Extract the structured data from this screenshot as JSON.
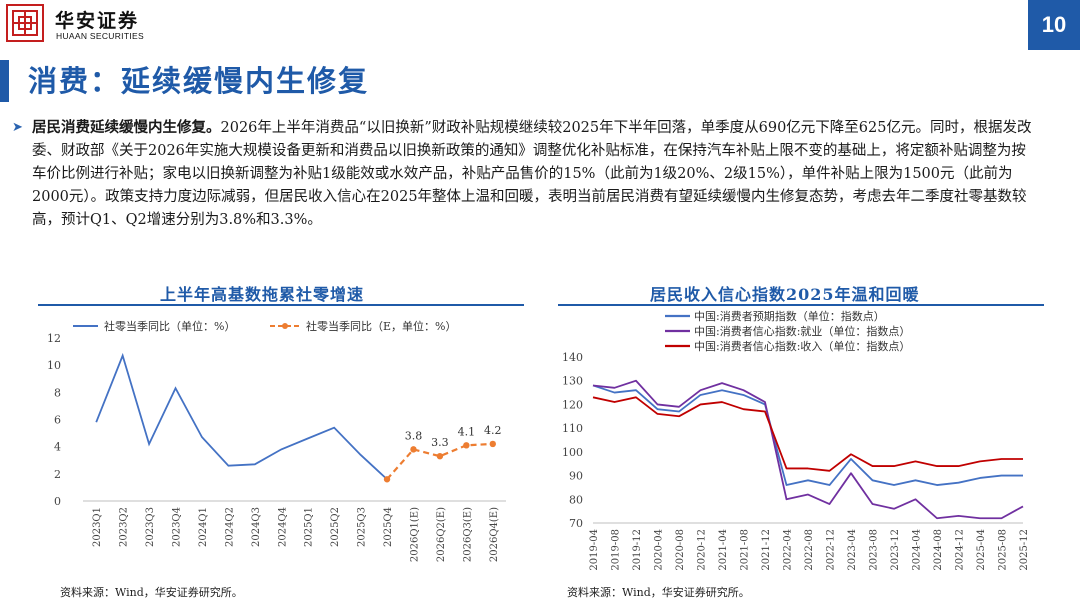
{
  "header": {
    "logo_name": "华安证券",
    "logo_en": "HUAAN SECURITIES",
    "page_number": "10"
  },
  "title": "消费：延续缓慢内生修复",
  "body": {
    "lead": "居民消费延续缓慢内生修复。",
    "text": "2026年上半年消费品“以旧换新”财政补贴规模继续较2025年下半年回落，单季度从690亿元下降至625亿元。同时，根据发改委、财政部《关于2026年实施大规模设备更新和消费品以旧换新政策的通知》调整优化补贴标准，在保持汽车补贴上限不变的基础上，将定额补贴调整为按车价比例进行补贴；家电以旧换新调整为补贴1级能效或水效产品，补贴产品售价的15%（此前为1级20%、2级15%），单件补贴上限为1500元（此前为2000元）。政策支持力度边际减弱，但居民收入信心在2025年整体上温和回暖，表明当前居民消费有望延续缓慢内生修复态势，考虑去年二季度社零基数较高，预计Q1、Q2增速分别为3.8%和3.3%。"
  },
  "colors": {
    "brand_blue": "#1f5aa8",
    "logo_red": "#c41e1e",
    "series_blue": "#4472c4",
    "series_orange": "#ed7d31",
    "series_red": "#c00000",
    "series_purple": "#7030a0"
  },
  "chart_left": {
    "title": "上半年高基数拖累社零增速",
    "source": "资料来源：Wind，华安证券研究所。",
    "chart_data": {
      "type": "line",
      "categories": [
        "2023Q1",
        "2023Q2",
        "2023Q3",
        "2023Q4",
        "2024Q1",
        "2024Q2",
        "2024Q3",
        "2024Q4",
        "2025Q1",
        "2025Q2",
        "2025Q3",
        "2025Q4",
        "2026Q1(E)",
        "2026Q2(E)",
        "2026Q3(E)",
        "2026Q4(E)"
      ],
      "ylim": [
        0,
        12
      ],
      "yticks": [
        0,
        2,
        4,
        6,
        8,
        10,
        12
      ],
      "series": [
        {
          "name": "社零当季同比（单位：%）",
          "color": "#4472c4",
          "values": [
            5.8,
            10.7,
            4.2,
            8.3,
            4.7,
            2.6,
            2.7,
            3.8,
            4.6,
            5.4,
            3.4,
            1.6,
            null,
            null,
            null,
            null
          ]
        },
        {
          "name": "社零当季同比（E，单位：%）",
          "color": "#ed7d31",
          "dashed": true,
          "values": [
            null,
            null,
            null,
            null,
            null,
            null,
            null,
            null,
            null,
            null,
            null,
            1.6,
            3.8,
            3.3,
            4.1,
            4.2
          ],
          "labels": [
            "",
            "",
            "",
            "",
            "",
            "",
            "",
            "",
            "",
            "",
            "",
            "",
            "3.8",
            "3.3",
            "4.1",
            "4.2"
          ]
        }
      ]
    }
  },
  "chart_right": {
    "title": "居民收入信心指数2025年温和回暖",
    "source": "资料来源：Wind，华安证券研究所。",
    "chart_data": {
      "type": "line",
      "x": [
        "2019-04",
        "2019-08",
        "2019-12",
        "2020-04",
        "2020-08",
        "2020-12",
        "2021-04",
        "2021-08",
        "2021-12",
        "2022-04",
        "2022-08",
        "2022-12",
        "2023-04",
        "2023-08",
        "2023-12",
        "2024-04",
        "2024-08",
        "2024-12",
        "2025-04",
        "2025-08",
        "2025-12"
      ],
      "ylim": [
        70,
        140
      ],
      "yticks": [
        70,
        80,
        90,
        100,
        110,
        120,
        130,
        140
      ],
      "series": [
        {
          "name": "中国:消费者预期指数（单位：指数点）",
          "color": "#4472c4",
          "values": [
            128,
            125,
            126,
            118,
            117,
            124,
            126,
            124,
            120,
            86,
            88,
            86,
            97,
            88,
            86,
            88,
            86,
            87,
            89,
            90,
            90
          ]
        },
        {
          "name": "中国:消费者信心指数:就业（单位：指数点）",
          "color": "#7030a0",
          "values": [
            128,
            127,
            130,
            120,
            119,
            126,
            129,
            126,
            121,
            80,
            82,
            78,
            91,
            78,
            76,
            80,
            72,
            73,
            72,
            72,
            77
          ]
        },
        {
          "name": "中国:消费者信心指数:收入（单位：指数点）",
          "color": "#c00000",
          "values": [
            123,
            121,
            123,
            116,
            115,
            120,
            121,
            118,
            117,
            93,
            93,
            92,
            99,
            94,
            94,
            96,
            94,
            94,
            96,
            97,
            97
          ]
        }
      ]
    }
  }
}
